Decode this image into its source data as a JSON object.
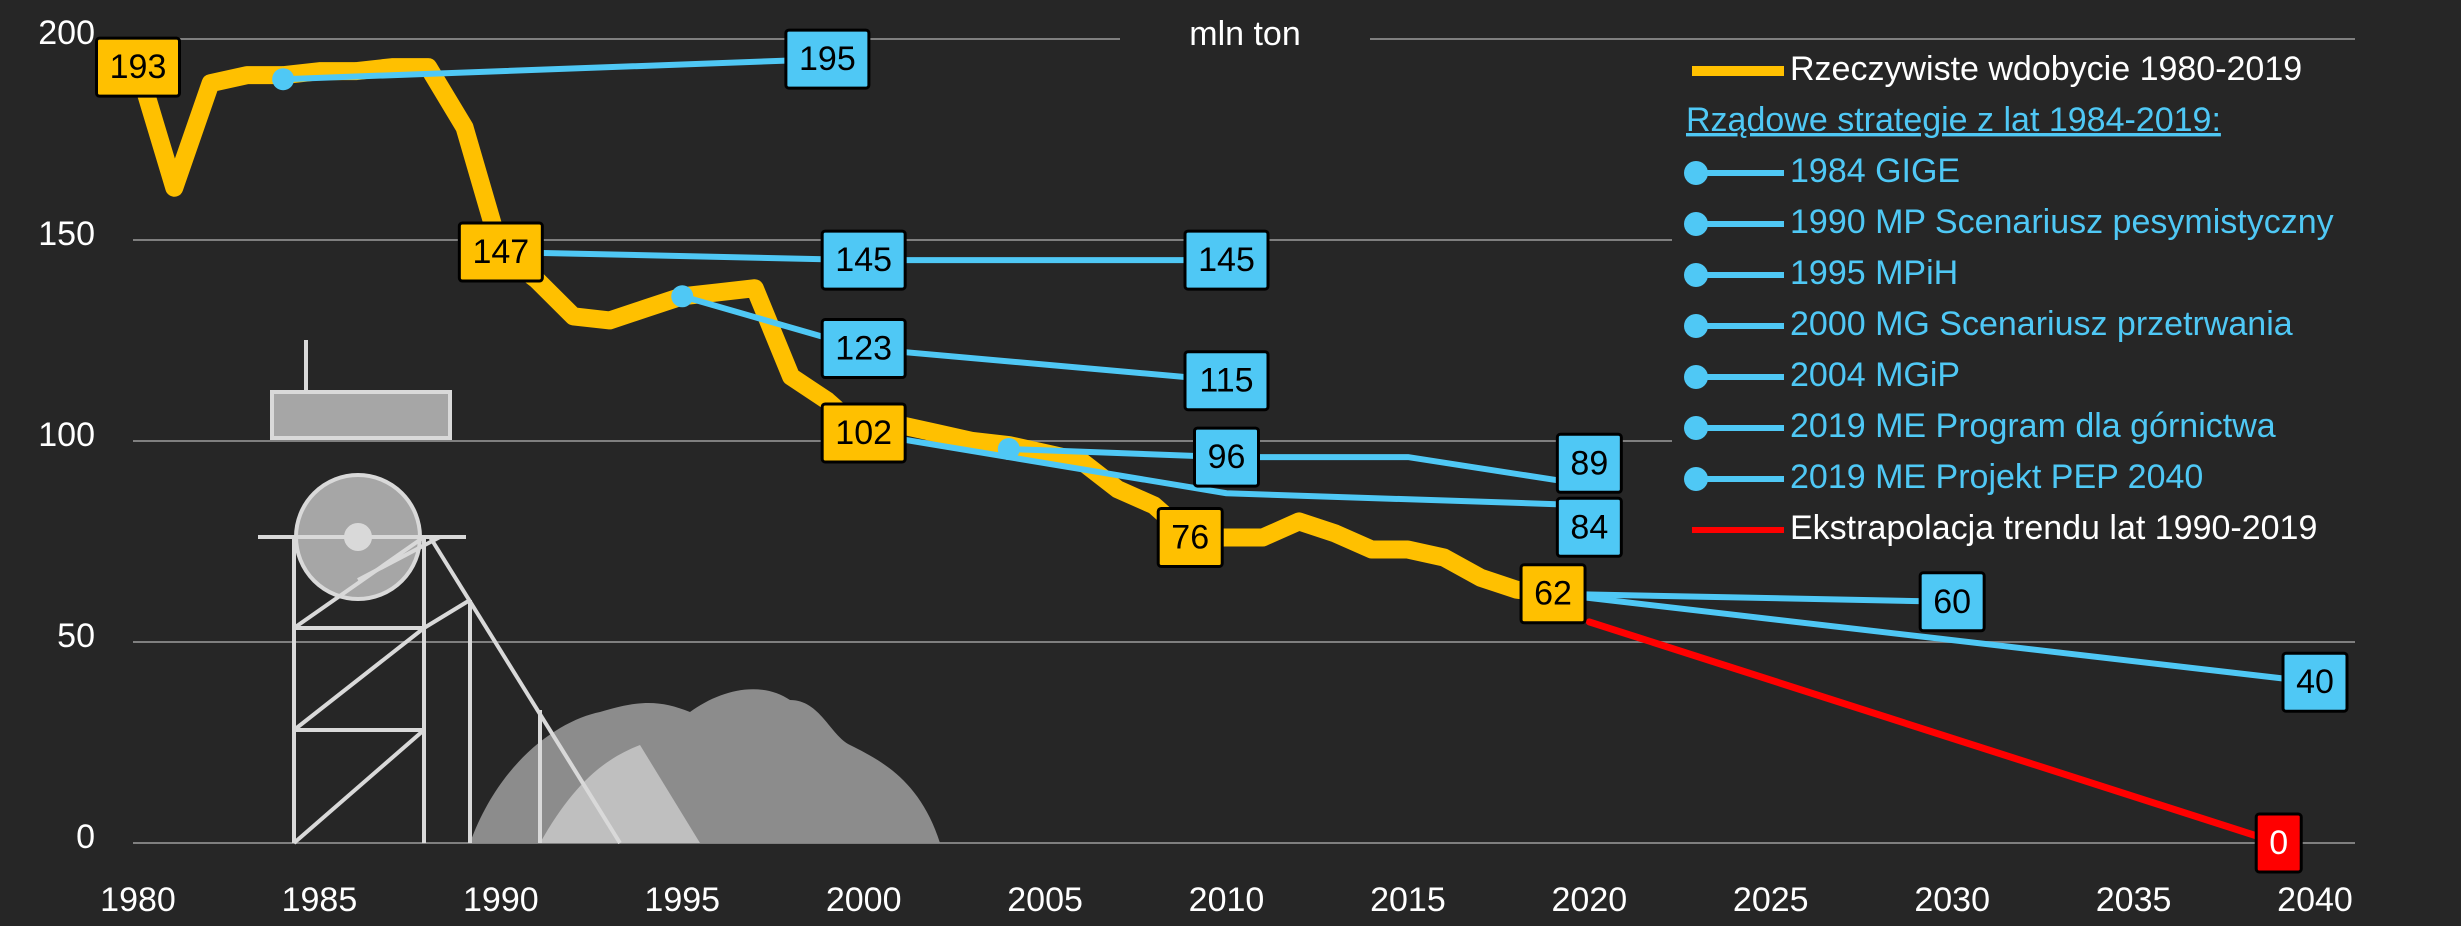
{
  "chart_data": {
    "type": "line",
    "unit_label": "mln ton",
    "legend_subtitle": "Rządowe strategie z lat 1984-2019:",
    "legend": "upper right",
    "grid": true,
    "xlim": [
      1980,
      2040
    ],
    "xticks": [
      1980,
      1985,
      1990,
      1995,
      2000,
      2005,
      2010,
      2015,
      2020,
      2025,
      2030,
      2035,
      2040
    ],
    "ylim": [
      0,
      200
    ],
    "yticks": [
      0,
      50,
      100,
      150,
      200
    ],
    "series": [
      {
        "name": "Rzeczywiste wdobycie 1980-2019",
        "color": "#ffc000",
        "text_color": "#ffffff",
        "label_text_color": "#000000",
        "width": 18,
        "x": [
          1980,
          1981,
          1982,
          1983,
          1984,
          1985,
          1986,
          1987,
          1988,
          1989,
          1990,
          1991,
          1992,
          1993,
          1994,
          1995,
          1996,
          1997,
          1998,
          1999,
          2000,
          2001,
          2002,
          2003,
          2004,
          2005,
          2006,
          2007,
          2008,
          2009,
          2010,
          2011,
          2012,
          2013,
          2014,
          2015,
          2016,
          2017,
          2018,
          2019
        ],
        "values": [
          193,
          163,
          189,
          191,
          191,
          192,
          192,
          193,
          193,
          178,
          147,
          140,
          131,
          130,
          133,
          136,
          137,
          138,
          116,
          110,
          102,
          104,
          102,
          100,
          99,
          97,
          95,
          88,
          84,
          76,
          76,
          76,
          80,
          77,
          73,
          73,
          71,
          66,
          63,
          62
        ],
        "value_labels": [
          "193",
          null,
          null,
          null,
          null,
          null,
          null,
          null,
          null,
          null,
          "147",
          null,
          null,
          null,
          null,
          null,
          null,
          null,
          null,
          null,
          "102",
          null,
          null,
          null,
          null,
          null,
          null,
          null,
          null,
          "76",
          null,
          null,
          null,
          null,
          null,
          null,
          null,
          null,
          null,
          "62"
        ]
      },
      {
        "name": "1984 GIGE",
        "color": "#4fc8f5",
        "text_color": "#4fc8f5",
        "label_text_color": "#000000",
        "width": 6,
        "marker": "circle",
        "x": [
          1984,
          1999
        ],
        "values": [
          190,
          195
        ],
        "value_labels": [
          null,
          "195"
        ]
      },
      {
        "name": "1990 MP Scenariusz pesymistyczny",
        "color": "#4fc8f5",
        "text_color": "#4fc8f5",
        "label_text_color": "#000000",
        "width": 6,
        "marker": "circle",
        "x": [
          1990,
          2000,
          2010
        ],
        "values": [
          147,
          145,
          145
        ],
        "value_labels": [
          null,
          "145",
          "145"
        ]
      },
      {
        "name": "1995 MPiH",
        "color": "#4fc8f5",
        "text_color": "#4fc8f5",
        "label_text_color": "#000000",
        "width": 6,
        "marker": "circle",
        "x": [
          1995,
          2000,
          2010
        ],
        "values": [
          136,
          123,
          115
        ],
        "value_labels": [
          null,
          "123",
          "115"
        ]
      },
      {
        "name": "2000 MG Scenariusz przetrwania",
        "color": "#4fc8f5",
        "text_color": "#4fc8f5",
        "label_text_color": "#000000",
        "width": 6,
        "marker": "circle",
        "x": [
          2000,
          2010,
          2020
        ],
        "values": [
          102,
          87,
          84
        ],
        "value_labels": [
          null,
          null,
          "84"
        ]
      },
      {
        "name": "2004 MGiP",
        "color": "#4fc8f5",
        "text_color": "#4fc8f5",
        "label_text_color": "#000000",
        "width": 6,
        "marker": "circle",
        "x": [
          2004,
          2010,
          2015,
          2020
        ],
        "values": [
          98,
          96,
          96,
          89
        ],
        "value_labels": [
          null,
          "96",
          null,
          "89"
        ]
      },
      {
        "name": "2019 ME Program dla górnictwa",
        "color": "#4fc8f5",
        "text_color": "#4fc8f5",
        "label_text_color": "#000000",
        "width": 6,
        "marker": "circle",
        "x": [
          2019,
          2030
        ],
        "values": [
          62,
          60
        ],
        "value_labels": [
          null,
          "60"
        ]
      },
      {
        "name": "2019 ME Projekt PEP 2040",
        "color": "#4fc8f5",
        "text_color": "#4fc8f5",
        "label_text_color": "#000000",
        "width": 6,
        "marker": "circle",
        "x": [
          2019,
          2040
        ],
        "values": [
          62,
          40
        ],
        "value_labels": [
          null,
          "40"
        ]
      },
      {
        "name": "Ekstrapolacja trendu lat 1990-2019",
        "color": "#ff0000",
        "text_color": "#ffffff",
        "label_text_color": "#ffffff",
        "width": 7,
        "x": [
          2020,
          2039
        ],
        "values": [
          55,
          0
        ],
        "value_labels": [
          null,
          "0"
        ]
      }
    ]
  }
}
